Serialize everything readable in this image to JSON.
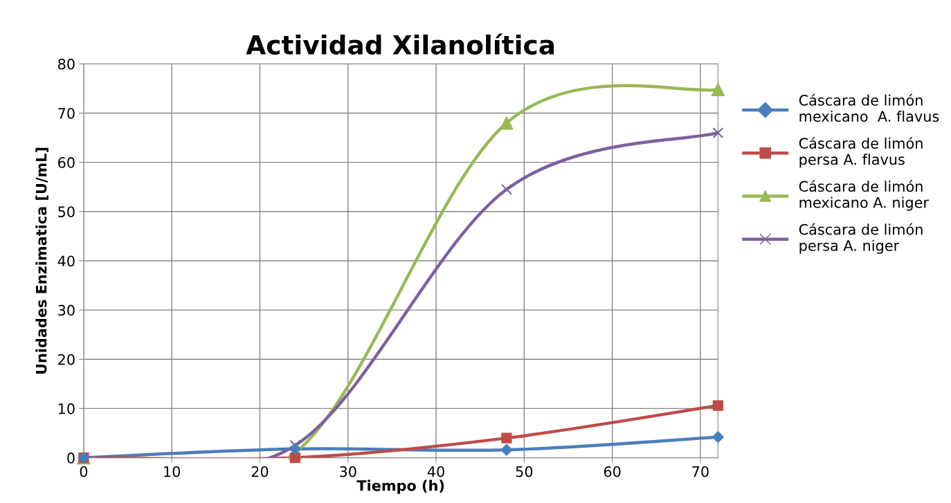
{
  "chart_data": {
    "type": "line",
    "title": "Actividad Xilanolítica",
    "xlabel": "Tiempo (h)",
    "ylabel": "Unidades Enzimatica [U/mL]",
    "x": [
      0,
      24,
      48,
      72
    ],
    "xlim": [
      0,
      72
    ],
    "xticks": [
      0,
      10,
      20,
      30,
      40,
      50,
      60,
      70
    ],
    "ylim": [
      0,
      80
    ],
    "yticks": [
      0,
      10,
      20,
      30,
      40,
      50,
      60,
      70,
      80
    ],
    "grid": true,
    "legend": "right",
    "line_style": "solid",
    "series": [
      {
        "name": "Cáscara de limón mexicano  A. flavus",
        "color": "#4a7ebb",
        "marker": "diamond",
        "values": [
          0,
          1.8,
          1.6,
          4.2
        ]
      },
      {
        "name": "Cáscara de limón persa A. flavus",
        "color": "#be4b48",
        "marker": "square",
        "values": [
          0,
          0,
          4,
          10.6
        ]
      },
      {
        "name": "Cáscara de limón mexicano A. niger",
        "color": "#98b954",
        "marker": "triangle",
        "values": [
          0,
          1,
          68,
          74.8
        ]
      },
      {
        "name": "Cáscara de limón persa A. niger",
        "color": "#7d60a0",
        "marker": "cross",
        "values": [
          0,
          2.5,
          54.5,
          66
        ]
      }
    ]
  }
}
